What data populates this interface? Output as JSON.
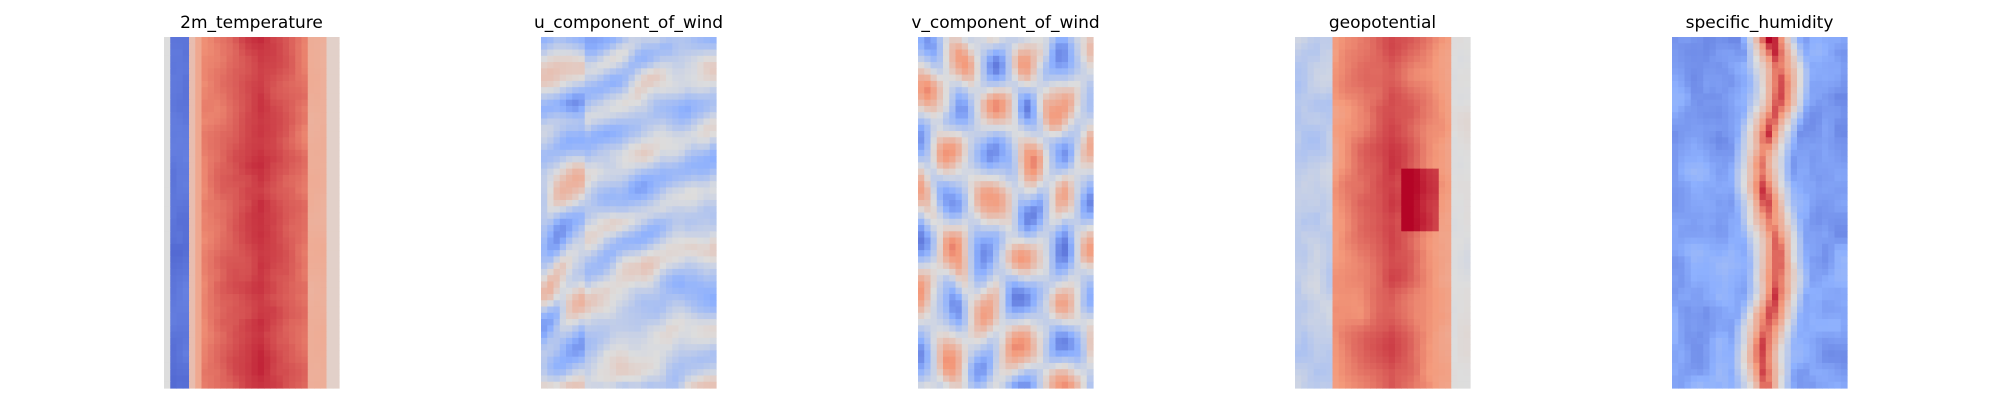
{
  "figure": {
    "colormap": "coolwarm",
    "colormap_colors": [
      "#3b4cc0",
      "#b40426"
    ],
    "axes": "off"
  },
  "chart_data": [
    {
      "type": "heatmap",
      "title": "2m_temperature",
      "pattern": "warm-band-center-cold-left-edge",
      "axis_visible": false
    },
    {
      "type": "heatmap",
      "title": "u_component_of_wind",
      "pattern": "streaky-mixed",
      "axis_visible": false
    },
    {
      "type": "heatmap",
      "title": "v_component_of_wind",
      "pattern": "eddies-mixed",
      "axis_visible": false
    },
    {
      "type": "heatmap",
      "title": "geopotential",
      "pattern": "warm-band-center-blue-left-edge",
      "axis_visible": false
    },
    {
      "type": "heatmap",
      "title": "specific_humidity",
      "pattern": "cold-field-warm-center-ridge",
      "axis_visible": false
    }
  ]
}
